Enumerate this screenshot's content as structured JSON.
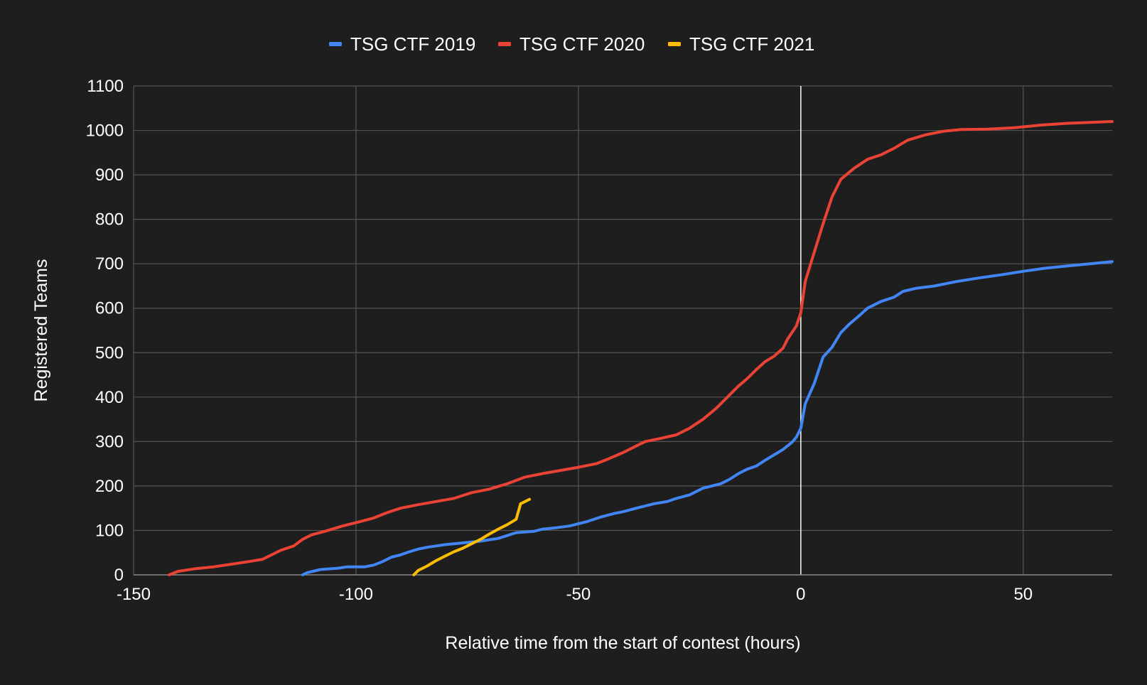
{
  "chart_data": {
    "type": "line",
    "title": "",
    "xlabel": "Relative time from the start of contest (hours)",
    "ylabel": "Registered Teams",
    "xlim": [
      -150,
      70
    ],
    "ylim": [
      0,
      1100
    ],
    "x_ticks": [
      -150,
      -100,
      -50,
      0,
      50
    ],
    "y_ticks": [
      0,
      100,
      200,
      300,
      400,
      500,
      600,
      700,
      800,
      900,
      1000,
      1100
    ],
    "grid": true,
    "legend_position": "top",
    "background": "#1e1e1e",
    "grid_color": "#555555",
    "zero_line_color": "#ffffff",
    "series": [
      {
        "name": "TSG CTF 2019",
        "color": "#4285f4",
        "points": [
          [
            -112,
            0
          ],
          [
            -111,
            5
          ],
          [
            -108,
            12
          ],
          [
            -104,
            15
          ],
          [
            -102,
            18
          ],
          [
            -98,
            18
          ],
          [
            -96,
            22
          ],
          [
            -94,
            30
          ],
          [
            -92,
            40
          ],
          [
            -90,
            45
          ],
          [
            -88,
            52
          ],
          [
            -86,
            58
          ],
          [
            -84,
            62
          ],
          [
            -80,
            68
          ],
          [
            -76,
            72
          ],
          [
            -72,
            76
          ],
          [
            -68,
            82
          ],
          [
            -64,
            95
          ],
          [
            -60,
            98
          ],
          [
            -58,
            103
          ],
          [
            -55,
            106
          ],
          [
            -52,
            110
          ],
          [
            -48,
            120
          ],
          [
            -45,
            130
          ],
          [
            -42,
            138
          ],
          [
            -40,
            142
          ],
          [
            -37,
            150
          ],
          [
            -35,
            155
          ],
          [
            -33,
            160
          ],
          [
            -30,
            165
          ],
          [
            -28,
            172
          ],
          [
            -25,
            180
          ],
          [
            -22,
            195
          ],
          [
            -18,
            205
          ],
          [
            -16,
            215
          ],
          [
            -14,
            228
          ],
          [
            -12,
            238
          ],
          [
            -10,
            245
          ],
          [
            -8,
            258
          ],
          [
            -6,
            270
          ],
          [
            -4,
            282
          ],
          [
            -2,
            298
          ],
          [
            -1,
            310
          ],
          [
            0,
            330
          ],
          [
            1,
            385
          ],
          [
            3,
            430
          ],
          [
            5,
            490
          ],
          [
            7,
            512
          ],
          [
            9,
            545
          ],
          [
            11,
            565
          ],
          [
            13,
            582
          ],
          [
            15,
            600
          ],
          [
            18,
            615
          ],
          [
            21,
            625
          ],
          [
            23,
            638
          ],
          [
            26,
            645
          ],
          [
            30,
            650
          ],
          [
            35,
            660
          ],
          [
            40,
            668
          ],
          [
            45,
            675
          ],
          [
            50,
            683
          ],
          [
            55,
            690
          ],
          [
            60,
            695
          ],
          [
            65,
            700
          ],
          [
            70,
            705
          ]
        ]
      },
      {
        "name": "TSG CTF 2020",
        "color": "#ea4335",
        "points": [
          [
            -142,
            0
          ],
          [
            -140,
            8
          ],
          [
            -136,
            14
          ],
          [
            -132,
            18
          ],
          [
            -128,
            24
          ],
          [
            -124,
            30
          ],
          [
            -121,
            35
          ],
          [
            -119,
            45
          ],
          [
            -117,
            55
          ],
          [
            -114,
            65
          ],
          [
            -112,
            80
          ],
          [
            -110,
            90
          ],
          [
            -107,
            98
          ],
          [
            -103,
            110
          ],
          [
            -99,
            120
          ],
          [
            -96,
            128
          ],
          [
            -93,
            140
          ],
          [
            -90,
            150
          ],
          [
            -86,
            158
          ],
          [
            -82,
            165
          ],
          [
            -78,
            172
          ],
          [
            -74,
            185
          ],
          [
            -70,
            193
          ],
          [
            -66,
            205
          ],
          [
            -62,
            220
          ],
          [
            -58,
            228
          ],
          [
            -54,
            235
          ],
          [
            -50,
            242
          ],
          [
            -46,
            250
          ],
          [
            -43,
            262
          ],
          [
            -40,
            275
          ],
          [
            -37,
            290
          ],
          [
            -35,
            300
          ],
          [
            -32,
            306
          ],
          [
            -28,
            315
          ],
          [
            -25,
            330
          ],
          [
            -22,
            350
          ],
          [
            -19,
            375
          ],
          [
            -16,
            405
          ],
          [
            -14,
            425
          ],
          [
            -12,
            442
          ],
          [
            -10,
            462
          ],
          [
            -8,
            480
          ],
          [
            -6,
            492
          ],
          [
            -4,
            510
          ],
          [
            -3,
            530
          ],
          [
            -1,
            560
          ],
          [
            0,
            590
          ],
          [
            1,
            660
          ],
          [
            3,
            725
          ],
          [
            5,
            790
          ],
          [
            7,
            850
          ],
          [
            9,
            890
          ],
          [
            12,
            915
          ],
          [
            15,
            935
          ],
          [
            18,
            945
          ],
          [
            21,
            960
          ],
          [
            24,
            978
          ],
          [
            28,
            990
          ],
          [
            32,
            998
          ],
          [
            36,
            1002
          ],
          [
            42,
            1003
          ],
          [
            48,
            1006
          ],
          [
            54,
            1012
          ],
          [
            60,
            1016
          ],
          [
            65,
            1018
          ],
          [
            70,
            1020
          ]
        ]
      },
      {
        "name": "TSG CTF 2021",
        "color": "#fbbc04",
        "points": [
          [
            -87,
            0
          ],
          [
            -86,
            10
          ],
          [
            -84,
            20
          ],
          [
            -82,
            32
          ],
          [
            -80,
            42
          ],
          [
            -78,
            52
          ],
          [
            -76,
            60
          ],
          [
            -74,
            70
          ],
          [
            -72,
            80
          ],
          [
            -70,
            92
          ],
          [
            -68,
            103
          ],
          [
            -66,
            113
          ],
          [
            -64,
            125
          ],
          [
            -63,
            160
          ],
          [
            -61,
            170
          ]
        ]
      }
    ]
  }
}
